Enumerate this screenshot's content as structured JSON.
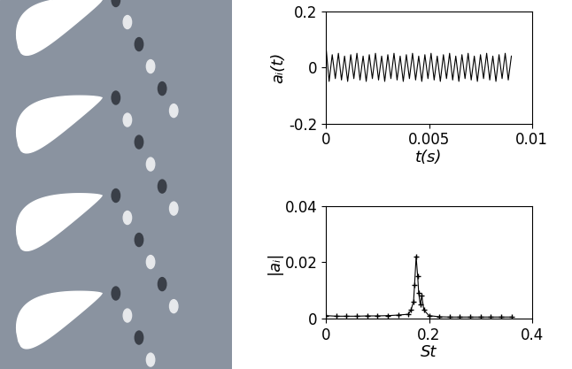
{
  "chart_data": [
    {
      "type": "line",
      "xlabel": "t(s)",
      "ylabel": "aᵢ(t)",
      "xlim": [
        0,
        0.01
      ],
      "xticks": [
        0,
        0.005,
        0.01
      ],
      "ylim": [
        -0.2,
        0.2
      ],
      "yticks": [
        -0.2,
        0,
        0.2
      ],
      "x": [
        0,
        0.00015,
        0.0003,
        0.00045,
        0.0006,
        0.00075,
        0.0009,
        0.00105,
        0.0012,
        0.00135,
        0.0015,
        0.00165,
        0.0018,
        0.00195,
        0.0021,
        0.00225,
        0.0024,
        0.00255,
        0.0027,
        0.00285,
        0.003,
        0.00315,
        0.0033,
        0.00345,
        0.0036,
        0.00375,
        0.0039,
        0.00405,
        0.0042,
        0.00435,
        0.0045,
        0.00465,
        0.0048,
        0.00495,
        0.0051,
        0.00525,
        0.0054,
        0.00555,
        0.0057,
        0.00585,
        0.006,
        0.00615,
        0.0063,
        0.00645,
        0.0066,
        0.00675,
        0.0069,
        0.00705,
        0.0072,
        0.00735,
        0.0075,
        0.00765,
        0.0078,
        0.00795,
        0.0081,
        0.00825,
        0.0084,
        0.00855,
        0.0087,
        0.00885,
        0.009
      ],
      "series": [
        {
          "color": "#000000",
          "line_style": "solid",
          "values": [
            0.07,
            -0.05,
            0.045,
            -0.04,
            0.05,
            -0.045,
            0.04,
            -0.05,
            0.045,
            -0.04,
            0.05,
            -0.045,
            0.04,
            -0.05,
            0.045,
            -0.04,
            0.05,
            -0.045,
            0.04,
            -0.05,
            0.045,
            -0.04,
            0.05,
            -0.045,
            0.04,
            -0.05,
            0.045,
            -0.04,
            0.05,
            -0.045,
            0.04,
            -0.05,
            0.045,
            -0.04,
            0.05,
            -0.045,
            0.04,
            -0.05,
            0.045,
            -0.04,
            0.05,
            -0.045,
            0.04,
            -0.05,
            0.045,
            -0.04,
            0.05,
            -0.045,
            0.04,
            -0.05,
            0.045,
            -0.04,
            0.05,
            -0.045,
            0.04,
            -0.05,
            0.045,
            -0.04,
            0.05,
            -0.045,
            0.04
          ]
        }
      ]
    },
    {
      "type": "line",
      "xlabel": "St",
      "ylabel": "|aᵢ|",
      "xlim": [
        0,
        0.4
      ],
      "xticks": [
        0,
        0.2,
        0.4
      ],
      "ylim": [
        0,
        0.04
      ],
      "yticks": [
        0,
        0.02,
        0.04
      ],
      "x": [
        0,
        0.02,
        0.04,
        0.06,
        0.08,
        0.1,
        0.12,
        0.14,
        0.16,
        0.165,
        0.17,
        0.172,
        0.175,
        0.178,
        0.18,
        0.183,
        0.186,
        0.19,
        0.2,
        0.22,
        0.24,
        0.26,
        0.28,
        0.3,
        0.32,
        0.34,
        0.36
      ],
      "series": [
        {
          "color": "#000000",
          "marker": "+",
          "line_style": "solid",
          "values": [
            0.001,
            0.0008,
            0.0008,
            0.0008,
            0.0009,
            0.0009,
            0.001,
            0.0012,
            0.0015,
            0.003,
            0.006,
            0.012,
            0.022,
            0.015,
            0.009,
            0.005,
            0.008,
            0.003,
            0.001,
            0.0006,
            0.0005,
            0.0005,
            0.0005,
            0.0005,
            0.0005,
            0.0005,
            0.0005
          ]
        }
      ]
    }
  ]
}
